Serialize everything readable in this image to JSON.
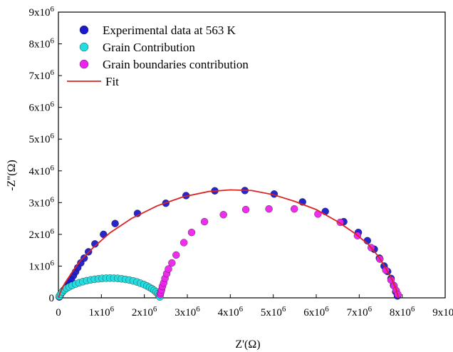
{
  "chart_data": {
    "type": "scatter",
    "xlabel": "Z'(Ω)",
    "ylabel": "-Z''(Ω)",
    "xlim": [
      0,
      9000000
    ],
    "ylim": [
      0,
      9000000
    ],
    "x_ticks": [
      {
        "v": 0,
        "base": "0",
        "exp": ""
      },
      {
        "v": 1000000,
        "base": "1x10",
        "exp": "6"
      },
      {
        "v": 2000000,
        "base": "2x10",
        "exp": "6"
      },
      {
        "v": 3000000,
        "base": "3x10",
        "exp": "6"
      },
      {
        "v": 4000000,
        "base": "4x10",
        "exp": "6"
      },
      {
        "v": 5000000,
        "base": "5x10",
        "exp": "6"
      },
      {
        "v": 6000000,
        "base": "6x10",
        "exp": "6"
      },
      {
        "v": 7000000,
        "base": "7x10",
        "exp": "6"
      },
      {
        "v": 8000000,
        "base": "8x10",
        "exp": "6"
      },
      {
        "v": 9000000,
        "base": "9x10",
        "exp": "6"
      }
    ],
    "y_ticks": [
      {
        "v": 0,
        "base": "0",
        "exp": ""
      },
      {
        "v": 1000000,
        "base": "1x10",
        "exp": "6"
      },
      {
        "v": 2000000,
        "base": "2x10",
        "exp": "6"
      },
      {
        "v": 3000000,
        "base": "3x10",
        "exp": "6"
      },
      {
        "v": 4000000,
        "base": "4x10",
        "exp": "6"
      },
      {
        "v": 5000000,
        "base": "5x10",
        "exp": "6"
      },
      {
        "v": 6000000,
        "base": "6x10",
        "exp": "6"
      },
      {
        "v": 7000000,
        "base": "7x10",
        "exp": "6"
      },
      {
        "v": 8000000,
        "base": "8x10",
        "exp": "6"
      },
      {
        "v": 9000000,
        "base": "9x10",
        "exp": "6"
      }
    ],
    "legend_position": "top-left",
    "grid": false,
    "series": [
      {
        "name": "Experimental data at 563 K",
        "kind": "markers",
        "color": "#1a1acc",
        "points": [
          [
            20000,
            30000
          ],
          [
            50000,
            100000
          ],
          [
            90000,
            180000
          ],
          [
            130000,
            250000
          ],
          [
            170000,
            320000
          ],
          [
            210000,
            400000
          ],
          [
            250000,
            480000
          ],
          [
            300000,
            580000
          ],
          [
            350000,
            700000
          ],
          [
            400000,
            820000
          ],
          [
            450000,
            950000
          ],
          [
            520000,
            1100000
          ],
          [
            600000,
            1250000
          ],
          [
            700000,
            1450000
          ],
          [
            850000,
            1700000
          ],
          [
            1050000,
            2000000
          ],
          [
            1320000,
            2340000
          ],
          [
            1840000,
            2660000
          ],
          [
            2500000,
            2980000
          ],
          [
            2970000,
            3220000
          ],
          [
            3640000,
            3370000
          ],
          [
            4340000,
            3380000
          ],
          [
            5020000,
            3270000
          ],
          [
            5680000,
            3020000
          ],
          [
            6210000,
            2720000
          ],
          [
            6640000,
            2400000
          ],
          [
            6980000,
            2060000
          ],
          [
            7190000,
            1800000
          ],
          [
            7350000,
            1530000
          ],
          [
            7470000,
            1250000
          ],
          [
            7580000,
            1000000
          ],
          [
            7660000,
            830000
          ],
          [
            7740000,
            610000
          ],
          [
            7800000,
            390000
          ],
          [
            7850000,
            190000
          ],
          [
            7890000,
            60000
          ]
        ]
      },
      {
        "name": "Grain Contribution",
        "kind": "markers",
        "color": "#22dde0",
        "points": [
          [
            20000,
            50000
          ],
          [
            50000,
            120000
          ],
          [
            90000,
            190000
          ],
          [
            140000,
            250000
          ],
          [
            190000,
            300000
          ],
          [
            250000,
            345000
          ],
          [
            320000,
            390000
          ],
          [
            400000,
            435000
          ],
          [
            480000,
            475000
          ],
          [
            570000,
            510000
          ],
          [
            660000,
            540000
          ],
          [
            750000,
            565000
          ],
          [
            840000,
            585000
          ],
          [
            930000,
            600000
          ],
          [
            1020000,
            612000
          ],
          [
            1110000,
            620000
          ],
          [
            1200000,
            622000
          ],
          [
            1290000,
            620000
          ],
          [
            1380000,
            612000
          ],
          [
            1470000,
            600000
          ],
          [
            1560000,
            582000
          ],
          [
            1650000,
            560000
          ],
          [
            1740000,
            535000
          ],
          [
            1830000,
            500000
          ],
          [
            1910000,
            460000
          ],
          [
            1990000,
            420000
          ],
          [
            2060000,
            375000
          ],
          [
            2120000,
            330000
          ],
          [
            2180000,
            285000
          ],
          [
            2230000,
            235000
          ],
          [
            2270000,
            185000
          ],
          [
            2310000,
            130000
          ],
          [
            2340000,
            75000
          ],
          [
            2360000,
            30000
          ]
        ]
      },
      {
        "name": "Grain boundaries contribution",
        "kind": "markers",
        "color": "#ee22ee",
        "points": [
          [
            2370000,
            100000
          ],
          [
            2380000,
            170000
          ],
          [
            2400000,
            250000
          ],
          [
            2420000,
            360000
          ],
          [
            2450000,
            470000
          ],
          [
            2480000,
            610000
          ],
          [
            2520000,
            760000
          ],
          [
            2560000,
            910000
          ],
          [
            2640000,
            1100000
          ],
          [
            2740000,
            1350000
          ],
          [
            2920000,
            1740000
          ],
          [
            3100000,
            2060000
          ],
          [
            3400000,
            2400000
          ],
          [
            3840000,
            2620000
          ],
          [
            4360000,
            2780000
          ],
          [
            4900000,
            2800000
          ],
          [
            5490000,
            2800000
          ],
          [
            6040000,
            2640000
          ],
          [
            6560000,
            2380000
          ],
          [
            6960000,
            1960000
          ],
          [
            7280000,
            1580000
          ],
          [
            7480000,
            1220000
          ],
          [
            7620000,
            870000
          ],
          [
            7740000,
            560000
          ],
          [
            7810000,
            380000
          ],
          [
            7860000,
            230000
          ],
          [
            7900000,
            110000
          ]
        ]
      },
      {
        "name": "Fit",
        "kind": "line",
        "color": "#dd2222",
        "points": [
          [
            0,
            0
          ],
          [
            50000,
            190000
          ],
          [
            150000,
            460000
          ],
          [
            300000,
            770000
          ],
          [
            500000,
            1150000
          ],
          [
            800000,
            1570000
          ],
          [
            1200000,
            2050000
          ],
          [
            1700000,
            2500000
          ],
          [
            2300000,
            2900000
          ],
          [
            2900000,
            3180000
          ],
          [
            3500000,
            3350000
          ],
          [
            4000000,
            3400000
          ],
          [
            4500000,
            3380000
          ],
          [
            5000000,
            3250000
          ],
          [
            5500000,
            3040000
          ],
          [
            6000000,
            2780000
          ],
          [
            6500000,
            2400000
          ],
          [
            6900000,
            2030000
          ],
          [
            7200000,
            1700000
          ],
          [
            7450000,
            1300000
          ],
          [
            7620000,
            930000
          ],
          [
            7760000,
            580000
          ],
          [
            7860000,
            260000
          ],
          [
            7900000,
            50000
          ],
          [
            7910000,
            0
          ]
        ]
      }
    ]
  }
}
